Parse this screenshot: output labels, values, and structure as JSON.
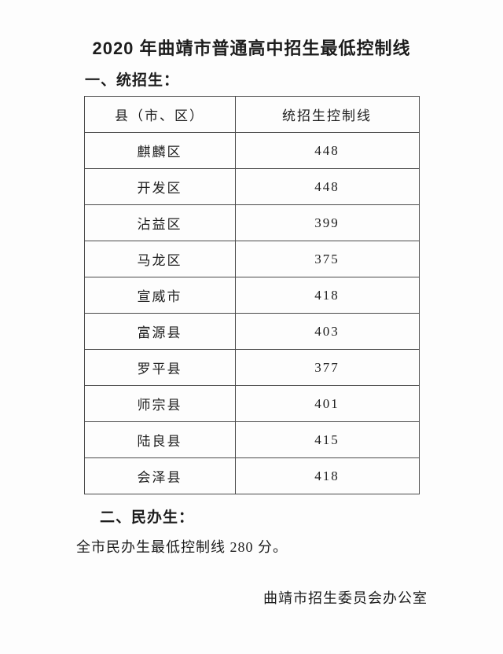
{
  "page": {
    "title": "2020 年曲靖市普通高中招生最低控制线",
    "section1_label": "一、统招生：",
    "section2_label": "二、民办生：",
    "section2_text": "全市民办生最低控制线 280 分。",
    "signature": "曲靖市招生委员会办公室"
  },
  "table": {
    "headers": [
      "县（市、区）",
      "统招生控制线"
    ],
    "rows": [
      {
        "county": "麒麟区",
        "score": "448"
      },
      {
        "county": "开发区",
        "score": "448"
      },
      {
        "county": "沾益区",
        "score": "399"
      },
      {
        "county": "马龙区",
        "score": "375"
      },
      {
        "county": "宣威市",
        "score": "418"
      },
      {
        "county": "富源县",
        "score": "403"
      },
      {
        "county": "罗平县",
        "score": "377"
      },
      {
        "county": "师宗县",
        "score": "401"
      },
      {
        "county": "陆良县",
        "score": "415"
      },
      {
        "county": "会泽县",
        "score": "418"
      }
    ]
  },
  "colors": {
    "text": "#1d1d1d",
    "table_border": "#4a4a4a",
    "background": "#fdfdfd"
  }
}
